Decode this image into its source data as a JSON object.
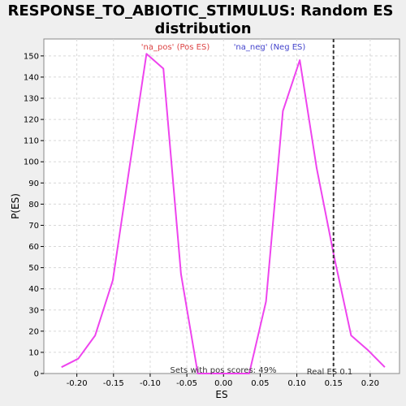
{
  "chart_data": {
    "type": "line",
    "title_lines": [
      "RESPONSE_TO_ABIOTIC_STIMULUS: Random ES",
      "distribution"
    ],
    "xlabel": "ES",
    "ylabel": "P(ES)",
    "xlim": [
      -0.245,
      0.24
    ],
    "ylim": [
      0,
      158
    ],
    "xticks": [
      -0.2,
      -0.15,
      -0.1,
      -0.05,
      0.0,
      0.05,
      0.1,
      0.15,
      0.2
    ],
    "xtick_labels": [
      "-0.20",
      "-0.15",
      "-0.10",
      "-0.05",
      "0.00",
      "0.05",
      "0.10",
      "0.15",
      "0.20"
    ],
    "yticks": [
      0,
      10,
      20,
      30,
      40,
      50,
      60,
      70,
      80,
      90,
      100,
      110,
      120,
      130,
      140,
      150
    ],
    "grid": true,
    "line_color": "#ee44ee",
    "series": [
      {
        "x": [
          -0.221,
          -0.198,
          -0.175,
          -0.151,
          -0.128,
          -0.105,
          -0.082,
          -0.058,
          -0.035,
          -0.012,
          0.011,
          0.035,
          0.058,
          0.081,
          0.104,
          0.127,
          0.151,
          0.174,
          0.197,
          0.22
        ],
        "y": [
          3,
          7,
          18,
          44,
          98,
          151,
          144,
          47,
          0,
          0,
          0,
          0,
          34,
          124,
          148,
          97,
          55,
          18,
          11,
          3
        ]
      }
    ],
    "real_es": {
      "value": 0.15,
      "label": "Real ES 0.1",
      "color": "#333333"
    },
    "annotations": {
      "na_pos": {
        "text": "'na_pos' (Pos ES)",
        "color": "#dd4444"
      },
      "na_neg": {
        "text": "'na_neg' (Neg ES)",
        "color": "#4444cc"
      },
      "pos_scores": {
        "text": "Sets with pos scores: 49%",
        "color": "#333333"
      }
    }
  }
}
